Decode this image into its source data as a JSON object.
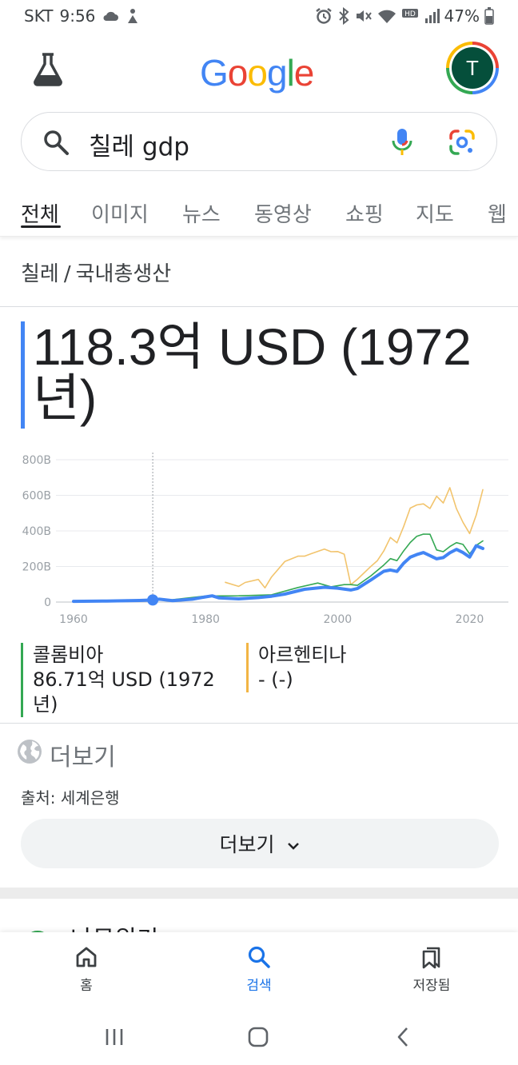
{
  "status": {
    "carrier": "SKT",
    "time": "9:56",
    "battery": "47%",
    "icons": [
      "cloud-icon",
      "accessibility-icon",
      "alarm-icon",
      "bluetooth-icon",
      "mute-icon",
      "wifi-icon",
      "hd-voice-icon",
      "signal-icon",
      "battery-icon"
    ]
  },
  "header": {
    "logo_letters": [
      {
        "ch": "G",
        "color": "#4285f4"
      },
      {
        "ch": "o",
        "color": "#ea4335"
      },
      {
        "ch": "o",
        "color": "#fbbc05"
      },
      {
        "ch": "g",
        "color": "#4285f4"
      },
      {
        "ch": "l",
        "color": "#34a853"
      },
      {
        "ch": "e",
        "color": "#ea4335"
      }
    ],
    "avatar_initial": "T"
  },
  "search": {
    "query": "칠레 gdp"
  },
  "tabs": [
    "전체",
    "이미지",
    "뉴스",
    "동영상",
    "쇼핑",
    "지도",
    "웹"
  ],
  "breadcrumb": {
    "country": "칠레",
    "separator": "/",
    "metric": "국내총생산"
  },
  "headline": {
    "line1": "118.3억 USD (1972",
    "line2": "년)"
  },
  "chart_data": {
    "type": "line",
    "y_ticks": [
      "800B",
      "600B",
      "400B",
      "200B",
      "0"
    ],
    "x_ticks": [
      "1960",
      "1980",
      "2000",
      "2020"
    ],
    "ylim": [
      0,
      800
    ],
    "xlim": [
      1960,
      2023
    ],
    "grid": true,
    "selected": {
      "year": 1972,
      "value": 11.83
    },
    "series": [
      {
        "name": "칠레",
        "color": "#4285f4",
        "points": [
          [
            1960,
            4
          ],
          [
            1965,
            6
          ],
          [
            1970,
            9
          ],
          [
            1972,
            11.8
          ],
          [
            1973,
            16
          ],
          [
            1975,
            8
          ],
          [
            1978,
            16
          ],
          [
            1980,
            29
          ],
          [
            1981,
            35
          ],
          [
            1982,
            24
          ],
          [
            1985,
            18
          ],
          [
            1988,
            25
          ],
          [
            1990,
            33
          ],
          [
            1992,
            45
          ],
          [
            1995,
            72
          ],
          [
            1998,
            83
          ],
          [
            2000,
            78
          ],
          [
            2002,
            68
          ],
          [
            2003,
            76
          ],
          [
            2005,
            123
          ],
          [
            2007,
            173
          ],
          [
            2008,
            180
          ],
          [
            2009,
            172
          ],
          [
            2010,
            218
          ],
          [
            2011,
            252
          ],
          [
            2012,
            267
          ],
          [
            2013,
            278
          ],
          [
            2014,
            261
          ],
          [
            2015,
            243
          ],
          [
            2016,
            250
          ],
          [
            2017,
            277
          ],
          [
            2018,
            296
          ],
          [
            2019,
            278
          ],
          [
            2020,
            253
          ],
          [
            2021,
            317
          ],
          [
            2022,
            301
          ]
        ]
      },
      {
        "name": "콜롬비아",
        "color": "#34a853",
        "points": [
          [
            1960,
            4
          ],
          [
            1970,
            7
          ],
          [
            1975,
            13
          ],
          [
            1980,
            34
          ],
          [
            1985,
            35
          ],
          [
            1990,
            41
          ],
          [
            1994,
            82
          ],
          [
            1997,
            107
          ],
          [
            1999,
            86
          ],
          [
            2001,
            98
          ],
          [
            2002,
            98
          ],
          [
            2003,
            94
          ],
          [
            2005,
            146
          ],
          [
            2007,
            208
          ],
          [
            2008,
            244
          ],
          [
            2009,
            233
          ],
          [
            2010,
            287
          ],
          [
            2011,
            335
          ],
          [
            2012,
            370
          ],
          [
            2013,
            382
          ],
          [
            2014,
            381
          ],
          [
            2015,
            293
          ],
          [
            2016,
            283
          ],
          [
            2017,
            312
          ],
          [
            2018,
            334
          ],
          [
            2019,
            324
          ],
          [
            2020,
            271
          ],
          [
            2021,
            318
          ],
          [
            2022,
            344
          ]
        ]
      },
      {
        "name": "아르헨티나",
        "color": "#f2c46d",
        "points": [
          [
            1983,
            111
          ],
          [
            1985,
            88
          ],
          [
            1986,
            110
          ],
          [
            1988,
            127
          ],
          [
            1989,
            80
          ],
          [
            1990,
            141
          ],
          [
            1992,
            228
          ],
          [
            1994,
            258
          ],
          [
            1995,
            258
          ],
          [
            1996,
            272
          ],
          [
            1998,
            298
          ],
          [
            1999,
            283
          ],
          [
            2000,
            284
          ],
          [
            2001,
            269
          ],
          [
            2002,
            98
          ],
          [
            2003,
            128
          ],
          [
            2005,
            199
          ],
          [
            2006,
            232
          ],
          [
            2007,
            287
          ],
          [
            2008,
            363
          ],
          [
            2009,
            333
          ],
          [
            2010,
            424
          ],
          [
            2011,
            528
          ],
          [
            2012,
            546
          ],
          [
            2013,
            552
          ],
          [
            2014,
            526
          ],
          [
            2015,
            595
          ],
          [
            2016,
            557
          ],
          [
            2017,
            643
          ],
          [
            2018,
            525
          ],
          [
            2019,
            448
          ],
          [
            2020,
            385
          ],
          [
            2021,
            488
          ],
          [
            2022,
            632
          ]
        ]
      }
    ]
  },
  "legend": [
    {
      "name": "콜롬비아",
      "value_line1": "86.71억 USD (1972",
      "value_line2": "년)"
    },
    {
      "name": "아르헨티나",
      "value_line1": "- (-)"
    }
  ],
  "more": {
    "header": "더보기",
    "source": "출처: 세계은행",
    "button": "더보기"
  },
  "peek": {
    "text": "나무위키"
  },
  "bottom_nav": [
    {
      "label": "홈",
      "icon": "home-icon"
    },
    {
      "label": "검색",
      "icon": "search-icon"
    },
    {
      "label": "저장됨",
      "icon": "bookmarks-icon"
    }
  ]
}
